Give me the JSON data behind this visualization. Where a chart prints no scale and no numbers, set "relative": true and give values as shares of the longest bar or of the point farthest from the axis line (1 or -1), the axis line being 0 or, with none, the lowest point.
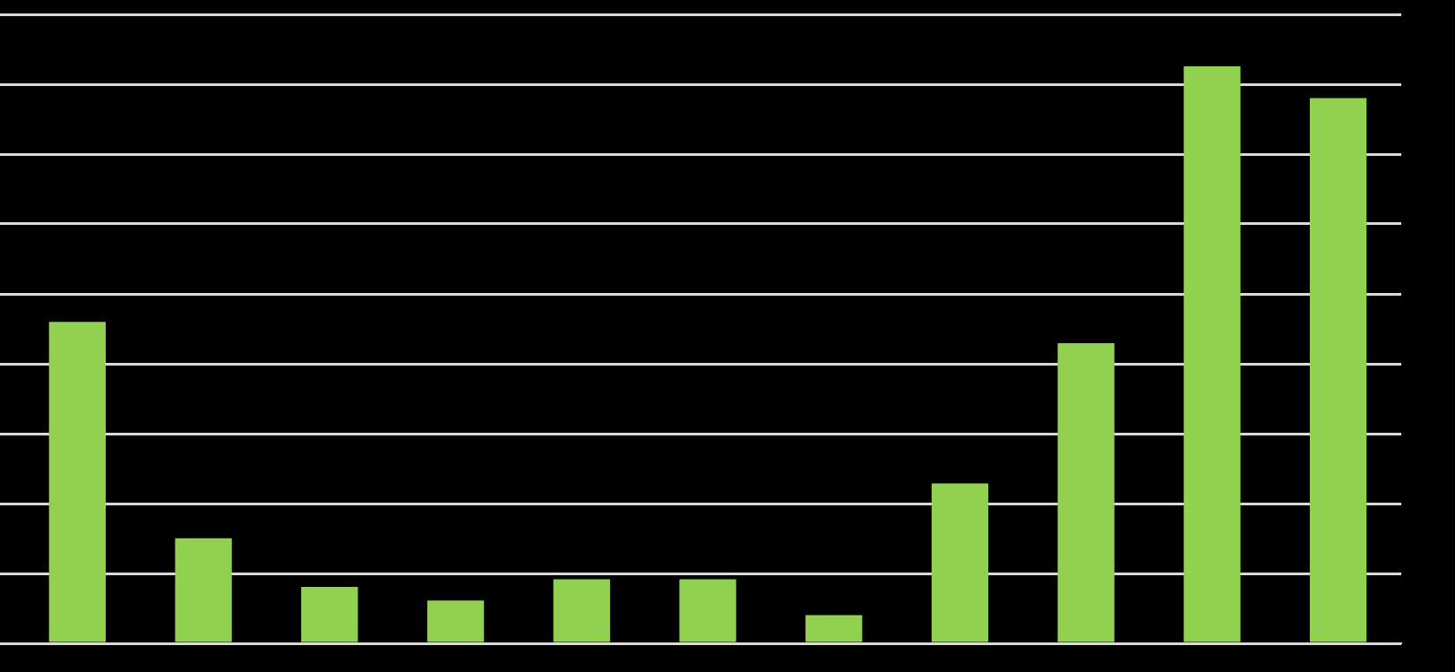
{
  "chart_data": {
    "type": "bar",
    "relative": true,
    "grid": "y",
    "categories": [
      null,
      null,
      null,
      null,
      null,
      null,
      null,
      null,
      null,
      null,
      null
    ],
    "values": [
      0.557,
      0.182,
      0.098,
      0.074,
      0.111,
      0.111,
      0.049,
      0.277,
      0.52,
      1,
      0.945
    ],
    "color": "#92d050"
  }
}
